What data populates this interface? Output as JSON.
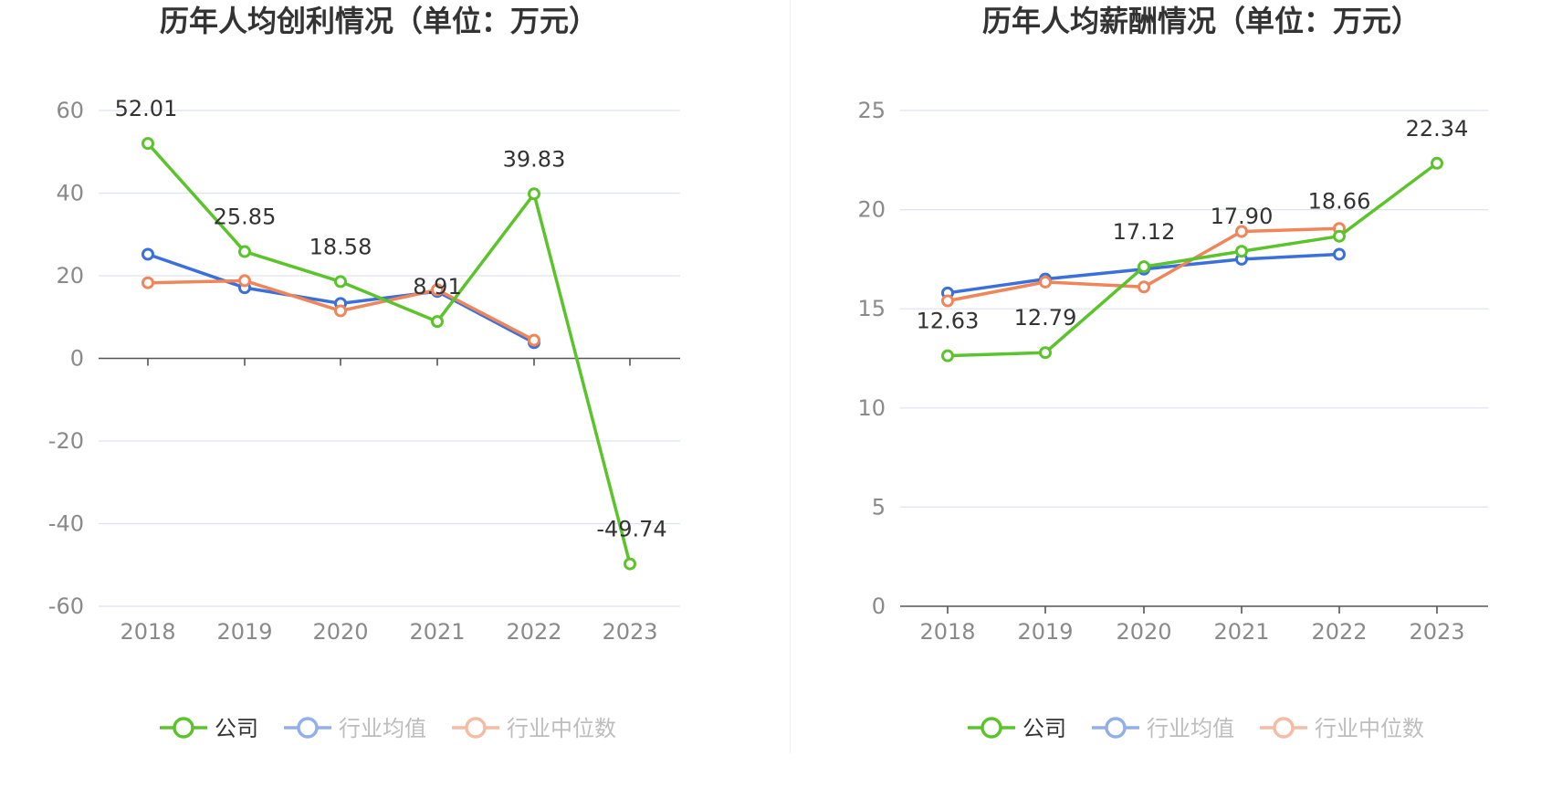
{
  "colors": {
    "company": "#5bc42b",
    "industry_avg": "#3a6fdc",
    "industry_median": "#f0855a"
  },
  "legend": [
    {
      "key": "company",
      "label": "公司",
      "active": true
    },
    {
      "key": "industry_avg",
      "label": "行业均值",
      "active": false
    },
    {
      "key": "industry_median",
      "label": "行业中位数",
      "active": false
    }
  ],
  "chart_data": [
    {
      "type": "line",
      "title": "历年人均创利情况（单位：万元）",
      "categories": [
        "2018",
        "2019",
        "2020",
        "2021",
        "2022",
        "2023"
      ],
      "ylim": [
        -60,
        60
      ],
      "yticks": [
        "60",
        "40",
        "20",
        "0",
        "-20",
        "-40",
        "-60"
      ],
      "series": [
        {
          "key": "company",
          "name": "公司",
          "values": [
            52.01,
            25.85,
            18.58,
            8.91,
            39.83,
            -49.74
          ],
          "labels": [
            "52.01",
            "25.85",
            "18.58",
            "8.91",
            "39.83",
            "-49.74"
          ]
        },
        {
          "key": "industry_avg",
          "name": "行业均值",
          "values": [
            25.2,
            17.1,
            13.3,
            16.2,
            3.8,
            null
          ]
        },
        {
          "key": "industry_median",
          "name": "行业中位数",
          "values": [
            18.3,
            18.8,
            11.5,
            16.6,
            4.4,
            null
          ]
        }
      ]
    },
    {
      "type": "line",
      "title": "历年人均薪酬情况（单位：万元）",
      "categories": [
        "2018",
        "2019",
        "2020",
        "2021",
        "2022",
        "2023"
      ],
      "ylim": [
        0,
        25
      ],
      "yticks": [
        "25",
        "20",
        "15",
        "10",
        "5",
        "0"
      ],
      "series": [
        {
          "key": "company",
          "name": "公司",
          "values": [
            12.63,
            12.79,
            17.12,
            17.9,
            18.66,
            22.34
          ],
          "labels": [
            "12.63",
            "12.79",
            "17.12",
            "17.90",
            "18.66",
            "22.34"
          ]
        },
        {
          "key": "industry_avg",
          "name": "行业均值",
          "values": [
            15.8,
            16.5,
            17.0,
            17.5,
            17.75,
            null
          ]
        },
        {
          "key": "industry_median",
          "name": "行业中位数",
          "values": [
            15.4,
            16.35,
            16.1,
            18.9,
            19.05,
            null
          ]
        }
      ]
    }
  ]
}
